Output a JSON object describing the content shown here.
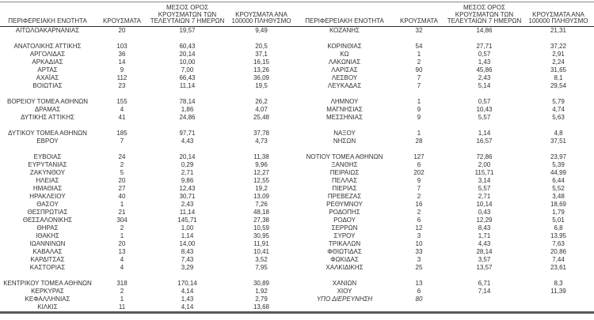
{
  "table": {
    "columns": [
      {
        "label": "ΠΕΡΙΦΕΡΕΙΑΚΗ ΕΝΟΤΗΤΑ"
      },
      {
        "label": "ΚΡΟΥΣΜΑΤΑ"
      },
      {
        "label": "ΜΕΣΟΣ ΟΡΟΣ\nΚΡΟΥΣΜΑΤΩΝ ΤΩΝ\nΤΕΛΕΥΤΑΙΩΝ 7 ΗΜΕΡΩΝ"
      },
      {
        "label": "ΚΡΟΥΣΜΑΤΑ ΑΝΑ\n100000 ΠΛΗΘΥΣΜΟ"
      }
    ],
    "italic_labels": [
      "ΥΠΟ ΔΙΕΡΕΥΝΗΣΗ"
    ],
    "left_rows": [
      [
        "ΑΙΤΩΛΟΑΚΑΡΝΑΝΙΑΣ",
        "20",
        "19,57",
        "9,49"
      ],
      [],
      [
        "ΑΝΑΤΟΛΙΚΗΣ ΑΤΤΙΚΗΣ",
        "103",
        "60,43",
        "20,5"
      ],
      [
        "ΑΡΓΟΛΙΔΑΣ",
        "36",
        "20,14",
        "37,1"
      ],
      [
        "ΑΡΚΑΔΙΑΣ",
        "14",
        "10,00",
        "16,15"
      ],
      [
        "ΑΡΤΑΣ",
        "9",
        "7,00",
        "13,26"
      ],
      [
        "ΑΧΑΪΑΣ",
        "112",
        "66,43",
        "36,09"
      ],
      [
        "ΒΟΙΩΤΙΑΣ",
        "23",
        "11,14",
        "19,5"
      ],
      [],
      [
        "ΒΟΡΕΙΟΥ ΤΟΜΕΑ ΑΘΗΝΩΝ",
        "155",
        "78,14",
        "26,2"
      ],
      [
        "ΔΡΑΜΑΣ",
        "4",
        "1,86",
        "4,07"
      ],
      [
        "ΔΥΤΙΚΗΣ ΑΤΤΙΚΗΣ",
        "41",
        "24,86",
        "25,48"
      ],
      [],
      [
        "ΔΥΤΙΚΟΥ ΤΟΜΕΑ ΑΘΗΝΩΝ",
        "185",
        "97,71",
        "37,78"
      ],
      [
        "ΕΒΡΟΥ",
        "7",
        "4,43",
        "4,73"
      ],
      [],
      [
        "ΕΥΒΟΙΑΣ",
        "24",
        "20,14",
        "11,38"
      ],
      [
        "ΕΥΡΥΤΑΝΙΑΣ",
        "2",
        "0,29",
        "9,96"
      ],
      [
        "ΖΑΚΥΝΘΟΥ",
        "5",
        "2,71",
        "12,27"
      ],
      [
        "ΗΛΕΙΑΣ",
        "20",
        "9,86",
        "12,55"
      ],
      [
        "ΗΜΑΘΙΑΣ",
        "27",
        "12,43",
        "19,2"
      ],
      [
        "ΗΡΑΚΛΕΙΟΥ",
        "40",
        "30,71",
        "13,09"
      ],
      [
        "ΘΑΣΟΥ",
        "1",
        "2,43",
        "7,26"
      ],
      [
        "ΘΕΣΠΡΩΤΙΑΣ",
        "21",
        "11,14",
        "48,18"
      ],
      [
        "ΘΕΣΣΑΛΟΝΙΚΗΣ",
        "304",
        "145,71",
        "27,38"
      ],
      [
        "ΘΗΡΑΣ",
        "2",
        "1,00",
        "10,59"
      ],
      [
        "ΙΘΑΚΗΣ",
        "1",
        "1,14",
        "30,95"
      ],
      [
        "ΙΩΑΝΝΙΝΩΝ",
        "20",
        "14,00",
        "11,91"
      ],
      [
        "ΚΑΒΑΛΑΣ",
        "13",
        "8,43",
        "10,41"
      ],
      [
        "ΚΑΡΔΙΤΣΑΣ",
        "4",
        "7,43",
        "3,52"
      ],
      [
        "ΚΑΣΤΟΡΙΑΣ",
        "4",
        "3,29",
        "7,95"
      ],
      [],
      [
        "ΚΕΝΤΡΙΚΟΥ ΤΟΜΕΑ ΑΘΗΝΩΝ",
        "318",
        "170,14",
        "30,89"
      ],
      [
        "ΚΕΡΚΥΡΑΣ",
        "2",
        "4,14",
        "1,92"
      ],
      [
        "ΚΕΦΑΛΛΗΝΙΑΣ",
        "1",
        "1,43",
        "2,79"
      ],
      [
        "ΚΙΛΚΙΣ",
        "11",
        "4,14",
        "13,68"
      ]
    ],
    "right_rows": [
      [
        "ΚΟΖΑΝΗΣ",
        "32",
        "14,86",
        "21,31"
      ],
      [],
      [
        "ΚΟΡΙΝΘΙΑΣ",
        "54",
        "27,71",
        "37,22"
      ],
      [
        "ΚΩ",
        "1",
        "0,57",
        "2,91"
      ],
      [
        "ΛΑΚΩΝΙΑΣ",
        "2",
        "1,43",
        "2,24"
      ],
      [
        "ΛΑΡΙΣΑΣ",
        "90",
        "45,86",
        "31,65"
      ],
      [
        "ΛΕΣΒΟΥ",
        "7",
        "2,43",
        "8,1"
      ],
      [
        "ΛΕΥΚΑΔΑΣ",
        "7",
        "5,14",
        "29,54"
      ],
      [],
      [
        "ΛΗΜΝΟΥ",
        "1",
        "0,57",
        "5,79"
      ],
      [
        "ΜΑΓΝΗΣΙΑΣ",
        "9",
        "10,43",
        "4,74"
      ],
      [
        "ΜΕΣΣΗΝΙΑΣ",
        "9",
        "5,57",
        "5,63"
      ],
      [],
      [
        "ΝΑΞΟΥ",
        "1",
        "1,14",
        "4,8"
      ],
      [
        "ΝΗΣΩΝ",
        "28",
        "16,57",
        "37,51"
      ],
      [],
      [
        "ΝΟΤΙΟΥ ΤΟΜΕΑ ΑΘΗΝΩΝ",
        "127",
        "72,86",
        "23,97"
      ],
      [
        "ΞΑΝΘΗΣ",
        "6",
        "2,00",
        "5,39"
      ],
      [
        "ΠΕΙΡΑΙΩΣ",
        "202",
        "115,71",
        "44,99"
      ],
      [
        "ΠΕΛΛΑΣ",
        "9",
        "3,14",
        "6,44"
      ],
      [
        "ΠΙΕΡΙΑΣ",
        "7",
        "5,57",
        "5,52"
      ],
      [
        "ΠΡΕΒΕΖΑΣ",
        "2",
        "2,71",
        "3,48"
      ],
      [
        "ΡΕΘΥΜΝΟΥ",
        "16",
        "10,14",
        "18,69"
      ],
      [
        "ΡΟΔΟΠΗΣ",
        "2",
        "0,43",
        "1,79"
      ],
      [
        "ΡΟΔΟΥ",
        "6",
        "12,29",
        "5,01"
      ],
      [
        "ΣΕΡΡΩΝ",
        "12",
        "8,43",
        "6,8"
      ],
      [
        "ΣΥΡΟΥ",
        "3",
        "1,71",
        "13,95"
      ],
      [
        "ΤΡΙΚΑΛΩΝ",
        "10",
        "4,43",
        "7,63"
      ],
      [
        "ΦΘΙΩΤΙΔΑΣ",
        "33",
        "28,14",
        "20,86"
      ],
      [
        "ΦΩΚΙΔΑΣ",
        "3",
        "3,57",
        "7,44"
      ],
      [
        "ΧΑΛΚΙΔΙΚΗΣ",
        "25",
        "13,57",
        "23,61"
      ],
      [],
      [
        "ΧΑΝΙΩΝ",
        "13",
        "6,71",
        "8,3"
      ],
      [
        "ΧΙΟΥ",
        "6",
        "7,14",
        "11,39"
      ],
      [
        "ΥΠΟ ΔΙΕΡΕΥΝΗΣΗ",
        "80",
        "",
        ""
      ],
      []
    ],
    "colors": {
      "text": "#303030",
      "header_rule": "#2b2b2b",
      "top_rule": "#8a8a8a",
      "bottom_rule": "#595959"
    }
  }
}
